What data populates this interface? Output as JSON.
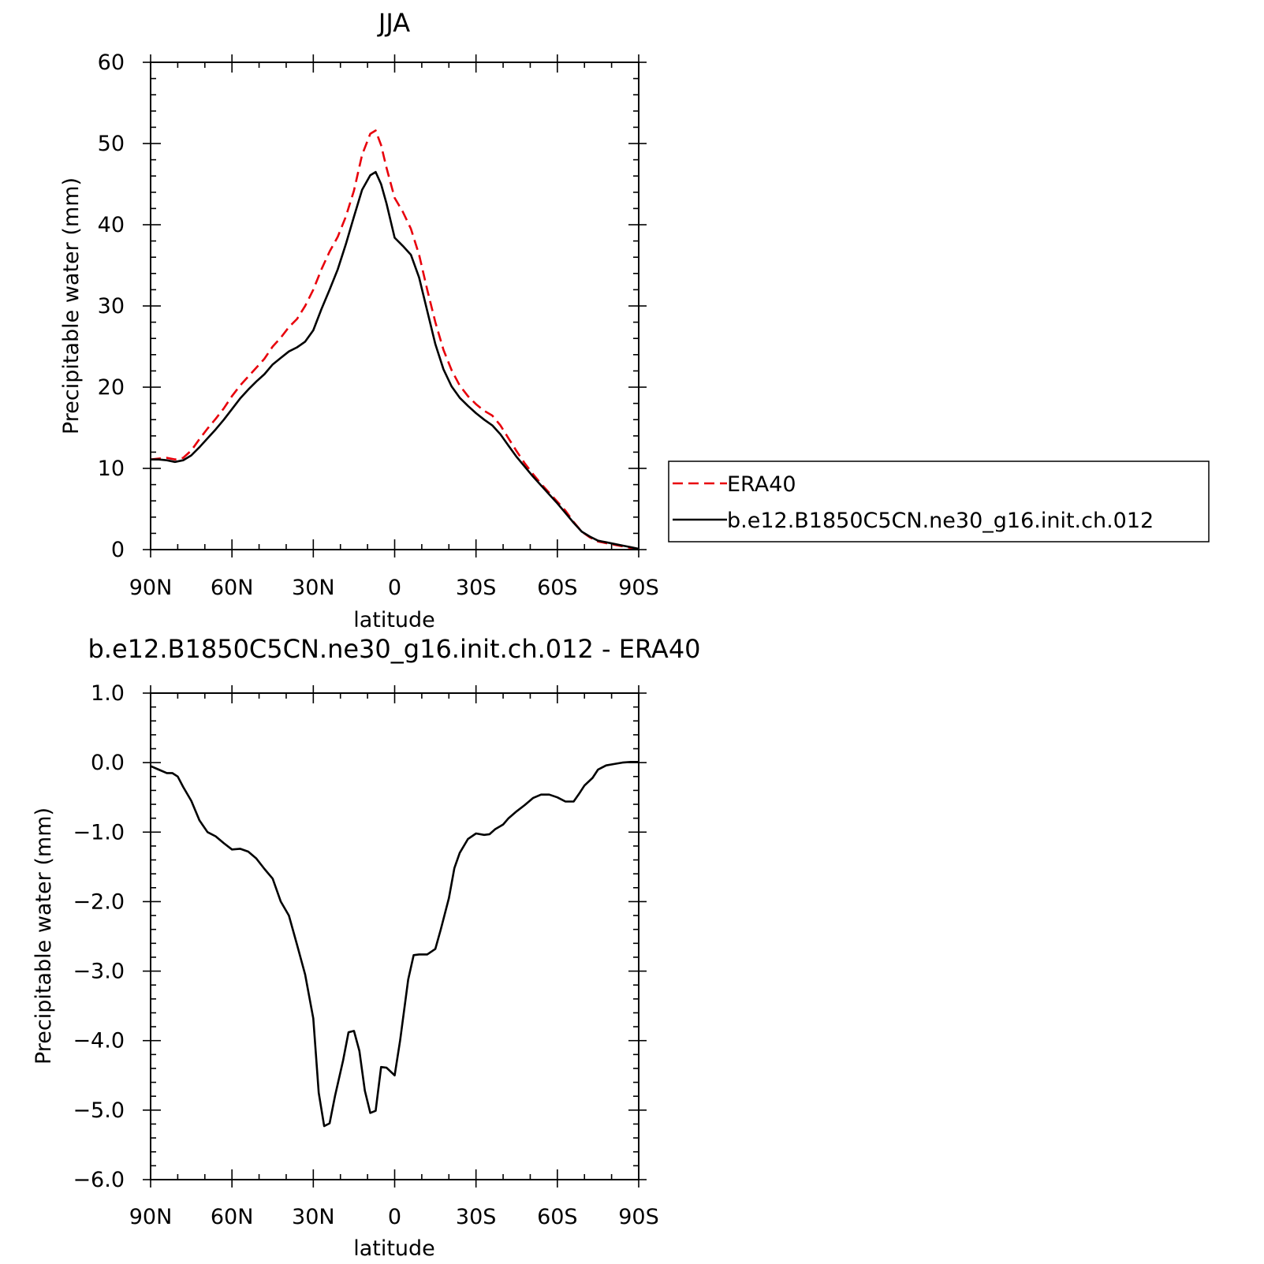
{
  "chart_data": [
    {
      "type": "line",
      "title": "JJA",
      "xlabel": "latitude",
      "ylabel": "Precipitable water (mm)",
      "xlim": [
        90,
        -90
      ],
      "ylim": [
        0,
        60
      ],
      "x_tick_values": [
        90,
        60,
        30,
        0,
        -30,
        -60,
        -90
      ],
      "x_tick_labels": [
        "90N",
        "60N",
        "30N",
        "0",
        "30S",
        "60S",
        "90S"
      ],
      "y_tick_values": [
        0,
        10,
        20,
        30,
        40,
        50,
        60
      ],
      "y_tick_labels": [
        "0",
        "10",
        "20",
        "30",
        "40",
        "50",
        "60"
      ],
      "grid": false,
      "legend_position": "right",
      "series": [
        {
          "name": "ERA40",
          "color": "#e8000b",
          "dash": "dashed",
          "points": [
            [
              90,
              11.1
            ],
            [
              87,
              11.2
            ],
            [
              84,
              11.3
            ],
            [
              81,
              11.1
            ],
            [
              78,
              11.3
            ],
            [
              75,
              12.2
            ],
            [
              72,
              13.6
            ],
            [
              69,
              14.9
            ],
            [
              66,
              16.1
            ],
            [
              63,
              17.4
            ],
            [
              60,
              18.9
            ],
            [
              57,
              20.2
            ],
            [
              54,
              21.3
            ],
            [
              51,
              22.4
            ],
            [
              48,
              23.5
            ],
            [
              45,
              25.0
            ],
            [
              42,
              26.1
            ],
            [
              39,
              27.4
            ],
            [
              36,
              28.4
            ],
            [
              33,
              30.0
            ],
            [
              30,
              32.0
            ],
            [
              27,
              34.5
            ],
            [
              24,
              36.7
            ],
            [
              21,
              38.5
            ],
            [
              18,
              41.0
            ],
            [
              15,
              44.2
            ],
            [
              12,
              48.6
            ],
            [
              9,
              51.2
            ],
            [
              7,
              51.6
            ],
            [
              5,
              49.8
            ],
            [
              3,
              47.0
            ],
            [
              0,
              43.3
            ],
            [
              -3,
              41.6
            ],
            [
              -6,
              39.5
            ],
            [
              -9,
              36.3
            ],
            [
              -12,
              32.0
            ],
            [
              -15,
              28.0
            ],
            [
              -18,
              24.6
            ],
            [
              -21,
              22.1
            ],
            [
              -24,
              20.2
            ],
            [
              -27,
              18.9
            ],
            [
              -30,
              17.9
            ],
            [
              -33,
              17.1
            ],
            [
              -36,
              16.5
            ],
            [
              -39,
              15.3
            ],
            [
              -42,
              13.7
            ],
            [
              -45,
              12.1
            ],
            [
              -48,
              10.6
            ],
            [
              -51,
              9.3
            ],
            [
              -54,
              8.1
            ],
            [
              -57,
              7.0
            ],
            [
              -60,
              5.9
            ],
            [
              -63,
              4.8
            ],
            [
              -66,
              3.4
            ],
            [
              -69,
              2.2
            ],
            [
              -72,
              1.5
            ],
            [
              -75,
              1.0
            ],
            [
              -78,
              0.8
            ],
            [
              -81,
              0.6
            ],
            [
              -84,
              0.4
            ],
            [
              -87,
              0.2
            ],
            [
              -90,
              0.0
            ]
          ]
        },
        {
          "name": "b.e12.B1850C5CN.ne30_g16.init.ch.012",
          "color": "#000000",
          "dash": "solid",
          "points": [
            [
              90,
              11.1
            ],
            [
              87,
              11.1
            ],
            [
              84,
              11.0
            ],
            [
              81,
              10.8
            ],
            [
              78,
              11.0
            ],
            [
              75,
              11.6
            ],
            [
              72,
              12.6
            ],
            [
              69,
              13.7
            ],
            [
              66,
              14.8
            ],
            [
              63,
              16.0
            ],
            [
              60,
              17.3
            ],
            [
              57,
              18.6
            ],
            [
              54,
              19.7
            ],
            [
              51,
              20.7
            ],
            [
              48,
              21.6
            ],
            [
              45,
              22.8
            ],
            [
              42,
              23.6
            ],
            [
              39,
              24.4
            ],
            [
              36,
              24.9
            ],
            [
              33,
              25.6
            ],
            [
              30,
              27.0
            ],
            [
              27,
              29.6
            ],
            [
              24,
              32.0
            ],
            [
              21,
              34.5
            ],
            [
              18,
              37.6
            ],
            [
              15,
              41.0
            ],
            [
              12,
              44.3
            ],
            [
              9,
              46.1
            ],
            [
              7,
              46.5
            ],
            [
              5,
              45.0
            ],
            [
              3,
              42.6
            ],
            [
              0,
              38.4
            ],
            [
              -3,
              37.4
            ],
            [
              -6,
              36.3
            ],
            [
              -9,
              33.5
            ],
            [
              -12,
              29.4
            ],
            [
              -15,
              25.3
            ],
            [
              -18,
              22.2
            ],
            [
              -21,
              20.1
            ],
            [
              -24,
              18.7
            ],
            [
              -27,
              17.7
            ],
            [
              -30,
              16.8
            ],
            [
              -33,
              16.0
            ],
            [
              -36,
              15.3
            ],
            [
              -39,
              14.2
            ],
            [
              -42,
              12.8
            ],
            [
              -45,
              11.4
            ],
            [
              -48,
              10.2
            ],
            [
              -51,
              9.0
            ],
            [
              -54,
              7.9
            ],
            [
              -57,
              6.8
            ],
            [
              -60,
              5.7
            ],
            [
              -63,
              4.5
            ],
            [
              -66,
              3.3
            ],
            [
              -69,
              2.2
            ],
            [
              -72,
              1.6
            ],
            [
              -75,
              1.1
            ],
            [
              -78,
              0.9
            ],
            [
              -81,
              0.7
            ],
            [
              -84,
              0.5
            ],
            [
              -87,
              0.3
            ],
            [
              -90,
              0.1
            ]
          ]
        }
      ]
    },
    {
      "type": "line",
      "title": "b.e12.B1850C5CN.ne30_g16.init.ch.012 - ERA40",
      "xlabel": "latitude",
      "ylabel": "Precipitable water (mm)",
      "xlim": [
        90,
        -90
      ],
      "ylim": [
        -6,
        1
      ],
      "x_tick_values": [
        90,
        60,
        30,
        0,
        -30,
        -60,
        -90
      ],
      "x_tick_labels": [
        "90N",
        "60N",
        "30N",
        "0",
        "30S",
        "60S",
        "90S"
      ],
      "y_tick_values": [
        1,
        0,
        -1,
        -2,
        -3,
        -4,
        -5,
        -6
      ],
      "y_tick_labels": [
        "1.0",
        "0.0",
        "−1.0",
        "−2.0",
        "−3.0",
        "−4.0",
        "−5.0",
        "−6.0"
      ],
      "grid": false,
      "series": [
        {
          "color": "#000000",
          "dash": "solid",
          "points": [
            [
              90,
              -0.05
            ],
            [
              87,
              -0.1
            ],
            [
              84,
              -0.15
            ],
            [
              82,
              -0.15
            ],
            [
              80,
              -0.2
            ],
            [
              78,
              -0.35
            ],
            [
              75,
              -0.55
            ],
            [
              72,
              -0.83
            ],
            [
              69,
              -1.0
            ],
            [
              66,
              -1.06
            ],
            [
              63,
              -1.16
            ],
            [
              60,
              -1.25
            ],
            [
              57,
              -1.24
            ],
            [
              54,
              -1.28
            ],
            [
              51,
              -1.38
            ],
            [
              48,
              -1.53
            ],
            [
              45,
              -1.67
            ],
            [
              42,
              -2.0
            ],
            [
              39,
              -2.2
            ],
            [
              36,
              -2.62
            ],
            [
              33,
              -3.05
            ],
            [
              30,
              -3.68
            ],
            [
              28,
              -4.75
            ],
            [
              26,
              -5.23
            ],
            [
              24,
              -5.19
            ],
            [
              22,
              -4.8
            ],
            [
              19,
              -4.28
            ],
            [
              17,
              -3.88
            ],
            [
              15,
              -3.86
            ],
            [
              13,
              -4.15
            ],
            [
              11,
              -4.72
            ],
            [
              9,
              -5.04
            ],
            [
              7,
              -5.01
            ],
            [
              5,
              -4.38
            ],
            [
              3,
              -4.39
            ],
            [
              0,
              -4.5
            ],
            [
              -2,
              -4.0
            ],
            [
              -5,
              -3.12
            ],
            [
              -7,
              -2.77
            ],
            [
              -9,
              -2.76
            ],
            [
              -12,
              -2.76
            ],
            [
              -15,
              -2.68
            ],
            [
              -17,
              -2.4
            ],
            [
              -20,
              -1.95
            ],
            [
              -22,
              -1.52
            ],
            [
              -24,
              -1.3
            ],
            [
              -27,
              -1.1
            ],
            [
              -30,
              -1.02
            ],
            [
              -33,
              -1.04
            ],
            [
              -35,
              -1.03
            ],
            [
              -37,
              -0.96
            ],
            [
              -40,
              -0.89
            ],
            [
              -42,
              -0.8
            ],
            [
              -45,
              -0.7
            ],
            [
              -48,
              -0.61
            ],
            [
              -51,
              -0.51
            ],
            [
              -54,
              -0.46
            ],
            [
              -57,
              -0.46
            ],
            [
              -60,
              -0.5
            ],
            [
              -63,
              -0.56
            ],
            [
              -66,
              -0.56
            ],
            [
              -68,
              -0.45
            ],
            [
              -70,
              -0.33
            ],
            [
              -73,
              -0.22
            ],
            [
              -75,
              -0.1
            ],
            [
              -78,
              -0.04
            ],
            [
              -81,
              -0.02
            ],
            [
              -84,
              0.0
            ],
            [
              -87,
              0.01
            ],
            [
              -90,
              0.01
            ]
          ]
        }
      ]
    }
  ]
}
